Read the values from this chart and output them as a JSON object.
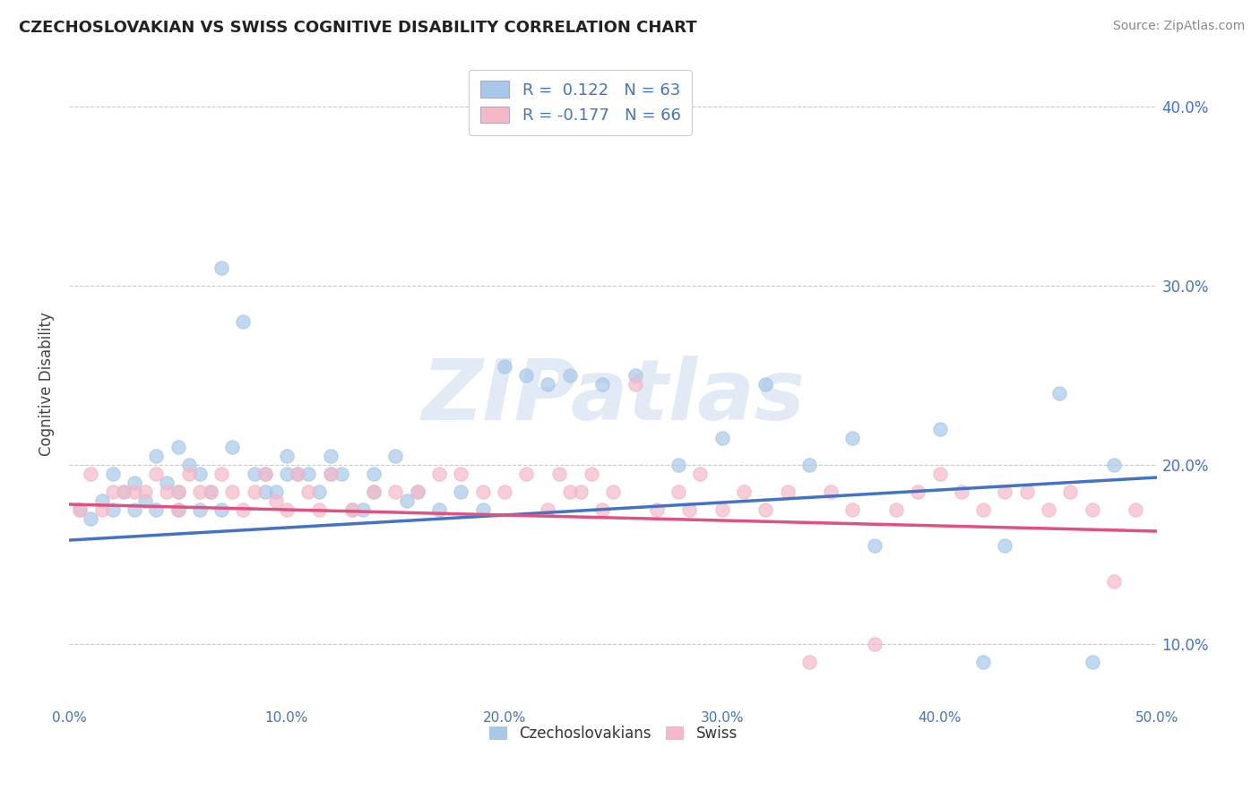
{
  "title": "CZECHOSLOVAKIAN VS SWISS COGNITIVE DISABILITY CORRELATION CHART",
  "source": "Source: ZipAtlas.com",
  "ylabel": "Cognitive Disability",
  "xlim": [
    0.0,
    0.5
  ],
  "ylim": [
    0.065,
    0.425
  ],
  "x_ticks": [
    0.0,
    0.1,
    0.2,
    0.3,
    0.4,
    0.5
  ],
  "x_tick_labels": [
    "0.0%",
    "10.0%",
    "20.0%",
    "30.0%",
    "40.0%",
    "50.0%"
  ],
  "y_ticks": [
    0.1,
    0.2,
    0.3,
    0.4
  ],
  "y_tick_labels": [
    "10.0%",
    "20.0%",
    "30.0%",
    "40.0%"
  ],
  "blue_R": 0.122,
  "blue_N": 63,
  "pink_R": -0.177,
  "pink_N": 66,
  "blue_color": "#a8c8e8",
  "pink_color": "#f4b8c8",
  "blue_line_color": "#4472c4",
  "pink_line_color": "#e05080",
  "legend_label_blue": "Czechoslovakians",
  "legend_label_pink": "Swiss",
  "watermark": "ZIPatlas",
  "background_color": "#ffffff",
  "grid_color": "#c8c8d8",
  "title_color": "#222222",
  "axis_label_color": "#444444",
  "tick_color": "#4472c4",
  "blue_line_y0": 0.158,
  "blue_line_y1": 0.193,
  "pink_line_y0": 0.178,
  "pink_line_y1": 0.163,
  "blue_scatter_x": [
    0.005,
    0.01,
    0.015,
    0.02,
    0.02,
    0.025,
    0.03,
    0.03,
    0.035,
    0.04,
    0.04,
    0.045,
    0.05,
    0.05,
    0.05,
    0.055,
    0.06,
    0.06,
    0.065,
    0.07,
    0.07,
    0.075,
    0.08,
    0.085,
    0.09,
    0.09,
    0.095,
    0.1,
    0.1,
    0.105,
    0.11,
    0.115,
    0.12,
    0.12,
    0.125,
    0.13,
    0.135,
    0.14,
    0.14,
    0.15,
    0.155,
    0.16,
    0.17,
    0.18,
    0.19,
    0.2,
    0.21,
    0.22,
    0.23,
    0.245,
    0.26,
    0.28,
    0.3,
    0.32,
    0.34,
    0.36,
    0.37,
    0.4,
    0.42,
    0.43,
    0.455,
    0.47,
    0.48
  ],
  "blue_scatter_y": [
    0.175,
    0.17,
    0.18,
    0.195,
    0.175,
    0.185,
    0.19,
    0.175,
    0.18,
    0.175,
    0.205,
    0.19,
    0.21,
    0.185,
    0.175,
    0.2,
    0.195,
    0.175,
    0.185,
    0.31,
    0.175,
    0.21,
    0.28,
    0.195,
    0.195,
    0.185,
    0.185,
    0.195,
    0.205,
    0.195,
    0.195,
    0.185,
    0.205,
    0.195,
    0.195,
    0.175,
    0.175,
    0.195,
    0.185,
    0.205,
    0.18,
    0.185,
    0.175,
    0.185,
    0.175,
    0.255,
    0.25,
    0.245,
    0.25,
    0.245,
    0.25,
    0.2,
    0.215,
    0.245,
    0.2,
    0.215,
    0.155,
    0.22,
    0.09,
    0.155,
    0.24,
    0.09,
    0.2
  ],
  "pink_scatter_x": [
    0.005,
    0.01,
    0.015,
    0.02,
    0.025,
    0.03,
    0.035,
    0.04,
    0.045,
    0.05,
    0.05,
    0.055,
    0.06,
    0.065,
    0.07,
    0.075,
    0.08,
    0.085,
    0.09,
    0.095,
    0.1,
    0.105,
    0.11,
    0.115,
    0.12,
    0.13,
    0.14,
    0.15,
    0.16,
    0.17,
    0.18,
    0.19,
    0.2,
    0.21,
    0.22,
    0.225,
    0.23,
    0.235,
    0.24,
    0.245,
    0.25,
    0.26,
    0.27,
    0.28,
    0.285,
    0.29,
    0.3,
    0.31,
    0.32,
    0.33,
    0.34,
    0.35,
    0.36,
    0.37,
    0.38,
    0.39,
    0.4,
    0.41,
    0.42,
    0.43,
    0.44,
    0.45,
    0.46,
    0.47,
    0.48,
    0.49
  ],
  "pink_scatter_y": [
    0.175,
    0.195,
    0.175,
    0.185,
    0.185,
    0.185,
    0.185,
    0.195,
    0.185,
    0.185,
    0.175,
    0.195,
    0.185,
    0.185,
    0.195,
    0.185,
    0.175,
    0.185,
    0.195,
    0.18,
    0.175,
    0.195,
    0.185,
    0.175,
    0.195,
    0.175,
    0.185,
    0.185,
    0.185,
    0.195,
    0.195,
    0.185,
    0.185,
    0.195,
    0.175,
    0.195,
    0.185,
    0.185,
    0.195,
    0.175,
    0.185,
    0.245,
    0.175,
    0.185,
    0.175,
    0.195,
    0.175,
    0.185,
    0.175,
    0.185,
    0.09,
    0.185,
    0.175,
    0.1,
    0.175,
    0.185,
    0.195,
    0.185,
    0.175,
    0.185,
    0.185,
    0.175,
    0.185,
    0.175,
    0.135,
    0.175
  ]
}
